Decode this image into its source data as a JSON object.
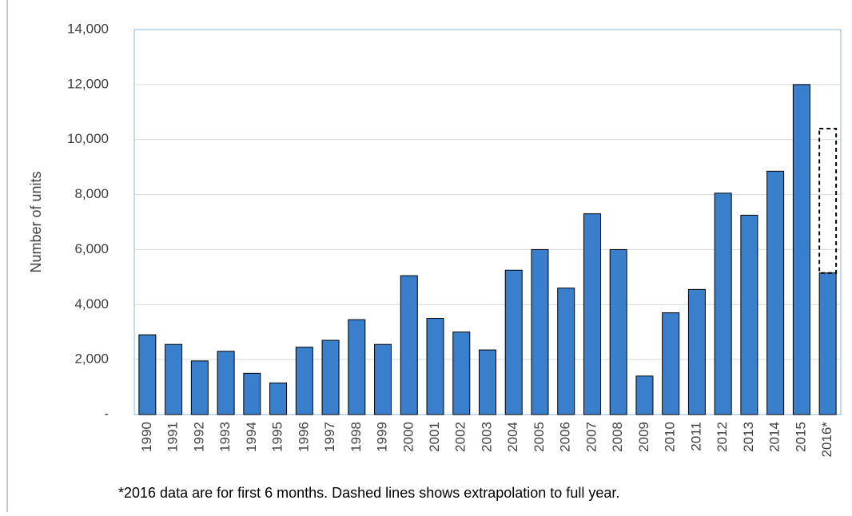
{
  "chart_data": {
    "type": "bar",
    "y_axis_label": "Number of units",
    "footnote": "*2016 data are for first 6 months.  Dashed lines shows extrapolation to full year.",
    "categories": [
      "1990",
      "1991",
      "1992",
      "1993",
      "1994",
      "1995",
      "1996",
      "1997",
      "1998",
      "1999",
      "2000",
      "2001",
      "2002",
      "2003",
      "2004",
      "2005",
      "2006",
      "2007",
      "2008",
      "2009",
      "2010",
      "2011",
      "2012",
      "2013",
      "2014",
      "2015",
      "2016*"
    ],
    "values": [
      2900,
      2550,
      1950,
      2300,
      1500,
      1150,
      2450,
      2700,
      3450,
      2550,
      5050,
      3500,
      3000,
      2350,
      5250,
      6000,
      4600,
      7300,
      6000,
      1400,
      3700,
      4550,
      8050,
      7250,
      8850,
      12000,
      5150
    ],
    "color": "#3a7fcc",
    "extrapolation": [
      null,
      null,
      null,
      null,
      null,
      null,
      null,
      null,
      null,
      null,
      null,
      null,
      null,
      null,
      null,
      null,
      null,
      null,
      null,
      null,
      null,
      null,
      null,
      null,
      null,
      null,
      10400
    ],
    "ylim": [
      0,
      14000
    ],
    "yticks": [
      {
        "value": 0,
        "label": "-"
      },
      {
        "value": 2000,
        "label": "2,000"
      },
      {
        "value": 4000,
        "label": "4,000"
      },
      {
        "value": 6000,
        "label": "6,000"
      },
      {
        "value": 8000,
        "label": "8,000"
      },
      {
        "value": 10000,
        "label": "10,000"
      },
      {
        "value": 12000,
        "label": "12,000"
      },
      {
        "value": 14000,
        "label": "14,000"
      }
    ],
    "grid": true
  }
}
